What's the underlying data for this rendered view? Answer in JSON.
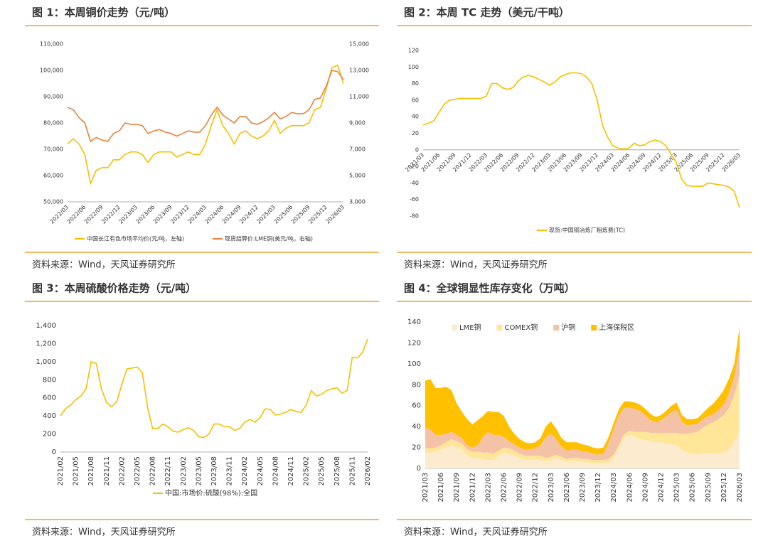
{
  "chart_data": [
    {
      "type": "line",
      "title": "图 1：本周铜价走势（元/吨）",
      "source": "资料来源：Wind，天风证券研究所",
      "categories": [
        "2022/03",
        null,
        null,
        "2022/06",
        null,
        null,
        "2022/09",
        null,
        null,
        "2022/12",
        null,
        null,
        "2023/03",
        null,
        null,
        "2023/06",
        null,
        null,
        "2023/09",
        null,
        null,
        "2023/12",
        null,
        null,
        "2024/03",
        null,
        null,
        "2024/06",
        null,
        null,
        "2024/09",
        null,
        null,
        "2024/12",
        null,
        null,
        "2025/03",
        null,
        null,
        "2025/06",
        null,
        null,
        "2025/09",
        null,
        null,
        "2025/12",
        null,
        null,
        "2026/03"
      ],
      "series": [
        {
          "name": "中国长江有色市场平均价(元/吨，左轴)",
          "color": "#f5c000",
          "values": [
            72000,
            74000,
            72000,
            68000,
            57000,
            62000,
            63000,
            63000,
            66000,
            66000,
            68000,
            69000,
            69000,
            68000,
            65000,
            68000,
            69000,
            69000,
            69000,
            67000,
            68000,
            69000,
            68000,
            68000,
            72000,
            79000,
            85000,
            79000,
            76000,
            72000,
            76000,
            77000,
            75000,
            74000,
            75000,
            77000,
            81000,
            76000,
            78000,
            79000,
            79000,
            79000,
            80000,
            85000,
            86000,
            93000,
            101000,
            102000,
            95000
          ]
        },
        {
          "name": "现货结算价:LME铜(美元/吨，右轴)",
          "color": "#e8823a",
          "axis": "y2",
          "values": [
            10200,
            10000,
            9400,
            9000,
            7600,
            7900,
            7700,
            7600,
            8200,
            8400,
            9000,
            8900,
            8900,
            8800,
            8200,
            8400,
            8500,
            8300,
            8200,
            8000,
            8200,
            8400,
            8300,
            8300,
            8800,
            9600,
            10200,
            9600,
            9300,
            9000,
            9500,
            9500,
            9000,
            8900,
            9100,
            9400,
            9800,
            9300,
            9500,
            9800,
            9700,
            9700,
            10000,
            10800,
            10900,
            11800,
            13000,
            12900,
            12300
          ]
        }
      ],
      "ylim": [
        50000,
        110000
      ],
      "yticks": [
        {
          "value": 50000,
          "label": "50,000"
        },
        {
          "value": 60000,
          "label": "60,000"
        },
        {
          "value": 70000,
          "label": "70,000"
        },
        {
          "value": 80000,
          "label": "80,000"
        },
        {
          "value": 90000,
          "label": "90,000"
        },
        {
          "value": 100000,
          "label": "100,000"
        },
        {
          "value": 110000,
          "label": "110,000"
        }
      ],
      "y2lim": [
        3000,
        15000
      ],
      "y2ticks": [
        {
          "value": 3000,
          "label": "3,000"
        },
        {
          "value": 5000,
          "label": "5,000"
        },
        {
          "value": 7000,
          "label": "7,000"
        },
        {
          "value": 9000,
          "label": "9,000"
        },
        {
          "value": 11000,
          "label": "11,000"
        },
        {
          "value": 13000,
          "label": "13,000"
        },
        {
          "value": 15000,
          "label": "15,000"
        }
      ],
      "legend": "bottom"
    },
    {
      "type": "line",
      "title": "图 2：本周 TC 走势（美元/干吨）",
      "source": "资料来源：Wind，天风证券研究所",
      "categories": [
        "2021/03",
        null,
        null,
        "2021/06",
        null,
        null,
        "2021/09",
        null,
        null,
        "2021/12",
        null,
        null,
        "2022/03",
        null,
        null,
        "2022/06",
        null,
        null,
        "2022/09",
        null,
        null,
        "2022/12",
        null,
        null,
        "2023/03",
        null,
        null,
        "2023/06",
        null,
        null,
        "2023/09",
        null,
        null,
        "2023/12",
        null,
        null,
        "2024/03",
        null,
        null,
        "2024/06",
        null,
        null,
        "2024/09",
        null,
        null,
        "2024/12",
        null,
        null,
        "2025/03",
        null,
        null,
        "2025/06",
        null,
        null,
        "2025/09",
        null,
        null,
        "2025/12",
        null,
        null,
        "2026/03"
      ],
      "series": [
        {
          "name": "现货:中国铜冶炼厂粗炼费(TC)",
          "color": "#f5c000",
          "values": [
            30,
            32,
            35,
            45,
            55,
            60,
            61,
            62,
            62,
            62,
            62,
            62,
            65,
            80,
            80,
            75,
            73,
            75,
            83,
            88,
            90,
            88,
            85,
            82,
            78,
            82,
            88,
            91,
            93,
            93,
            92,
            88,
            80,
            60,
            30,
            15,
            5,
            2,
            1,
            2,
            8,
            5,
            6,
            10,
            12,
            10,
            5,
            -5,
            -15,
            -35,
            -43,
            -44,
            -44,
            -44,
            -40,
            -41,
            -42,
            -43,
            -45,
            -50,
            -70
          ]
        }
      ],
      "ylim": [
        -80,
        120
      ],
      "yticks": [
        -80,
        -60,
        -40,
        -20,
        0,
        20,
        40,
        60,
        80,
        100,
        120
      ],
      "legend": "bottom"
    },
    {
      "type": "line",
      "title": "图 3：本周硫酸价格走势（元/吨）",
      "source": "资料来源：Wind，天风证券研究所",
      "categories": [
        "2021/02",
        null,
        null,
        "2021/05",
        null,
        null,
        "2021/08",
        null,
        null,
        "2021/11",
        null,
        null,
        "2022/02",
        null,
        null,
        "2022/05",
        null,
        null,
        "2022/08",
        null,
        null,
        "2022/11",
        null,
        null,
        "2023/02",
        null,
        null,
        "2023/05",
        null,
        null,
        "2023/08",
        null,
        null,
        "2023/11",
        null,
        null,
        "2024/02",
        null,
        null,
        "2024/05",
        null,
        null,
        "2024/08",
        null,
        null,
        "2024/11",
        null,
        null,
        "2025/02",
        null,
        null,
        "2025/05",
        null,
        null,
        "2025/08",
        null,
        null,
        "2025/11",
        null,
        null,
        "2026/02"
      ],
      "series": [
        {
          "name": "中国:市场价:硫酸(98%):全国",
          "color": "#f5c000",
          "values": [
            400,
            480,
            520,
            580,
            620,
            700,
            1000,
            980,
            700,
            550,
            500,
            560,
            750,
            920,
            930,
            940,
            880,
            500,
            260,
            260,
            310,
            280,
            230,
            220,
            250,
            270,
            240,
            170,
            160,
            200,
            310,
            310,
            280,
            280,
            240,
            260,
            330,
            360,
            330,
            380,
            480,
            470,
            410,
            420,
            440,
            470,
            450,
            440,
            520,
            680,
            620,
            640,
            680,
            700,
            710,
            650,
            680,
            1050,
            1040,
            1100,
            1250
          ]
        }
      ],
      "ylim": [
        0,
        1400
      ],
      "yticks": [
        0,
        200,
        400,
        600,
        800,
        {
          "value": 1000,
          "label": "1,000"
        },
        {
          "value": 1200,
          "label": "1,200"
        },
        {
          "value": 1400,
          "label": "1,400"
        }
      ],
      "legend": "bottom"
    },
    {
      "type": "area",
      "title": "图 4：全球铜显性库存变化（万吨）",
      "source": "资料来源：Wind，天风证券研究所",
      "categories": [
        "2021/03",
        null,
        null,
        "2021/06",
        null,
        null,
        "2021/09",
        null,
        null,
        "2021/12",
        null,
        null,
        "2022/03",
        null,
        null,
        "2022/06",
        null,
        null,
        "2022/09",
        null,
        null,
        "2022/12",
        null,
        null,
        "2023/03",
        null,
        null,
        "2023/06",
        null,
        null,
        "2023/09",
        null,
        null,
        "2023/12",
        null,
        null,
        "2024/03",
        null,
        null,
        "2024/06",
        null,
        null,
        "2024/09",
        null,
        null,
        "2024/12",
        null,
        null,
        "2025/03",
        null,
        null,
        "2025/06",
        null,
        null,
        "2025/09",
        null,
        null,
        "2025/12",
        null,
        null,
        "2026/03"
      ],
      "series": [
        {
          "name": "LME铜",
          "color": "#fdebd0",
          "values": [
            15,
            15,
            16,
            18,
            20,
            22,
            20,
            18,
            12,
            10,
            10,
            9,
            8,
            8,
            12,
            15,
            14,
            12,
            10,
            8,
            8,
            8,
            8,
            7,
            8,
            10,
            8,
            6,
            7,
            7,
            6,
            6,
            5,
            5,
            5,
            6,
            10,
            20,
            30,
            32,
            30,
            28,
            27,
            26,
            25,
            25,
            24,
            23,
            22,
            18,
            15,
            14,
            13,
            14,
            14,
            14,
            14,
            15,
            18,
            25,
            35
          ]
        },
        {
          "name": "COMEX铜",
          "color": "#ffe699",
          "values": [
            4,
            4,
            4,
            4,
            5,
            6,
            6,
            6,
            6,
            6,
            6,
            6,
            7,
            6,
            5,
            5,
            5,
            5,
            4,
            4,
            4,
            4,
            4,
            3,
            3,
            3,
            3,
            3,
            3,
            3,
            3,
            3,
            3,
            3,
            3,
            3,
            3,
            3,
            3,
            4,
            5,
            7,
            8,
            8,
            9,
            9,
            10,
            11,
            12,
            15,
            18,
            20,
            22,
            25,
            28,
            30,
            33,
            36,
            40,
            45,
            55
          ]
        },
        {
          "name": "沪铜",
          "color": "#f4c2a6",
          "values": [
            20,
            18,
            12,
            10,
            8,
            7,
            6,
            5,
            4,
            4,
            6,
            15,
            20,
            18,
            15,
            10,
            7,
            6,
            6,
            6,
            6,
            7,
            10,
            20,
            22,
            15,
            10,
            8,
            8,
            8,
            7,
            7,
            6,
            5,
            6,
            15,
            25,
            28,
            25,
            22,
            22,
            20,
            16,
            12,
            10,
            12,
            16,
            20,
            22,
            12,
            8,
            8,
            8,
            8,
            8,
            8,
            9,
            10,
            14,
            18,
            25
          ]
        },
        {
          "name": "上海保税区",
          "color": "#ffc000",
          "values": [
            45,
            48,
            45,
            45,
            45,
            40,
            30,
            25,
            25,
            22,
            24,
            20,
            20,
            22,
            22,
            20,
            14,
            10,
            8,
            7,
            6,
            6,
            7,
            10,
            12,
            10,
            8,
            8,
            7,
            7,
            7,
            6,
            6,
            6,
            6,
            6,
            6,
            6,
            6,
            6,
            6,
            6,
            6,
            6,
            5,
            5,
            5,
            6,
            7,
            6,
            6,
            5,
            5,
            6,
            8,
            10,
            12,
            14,
            14,
            12,
            20
          ]
        }
      ],
      "ylim": [
        0,
        140
      ],
      "yticks": [
        0,
        20,
        40,
        60,
        80,
        100,
        120,
        140
      ],
      "legend": "top-left"
    }
  ]
}
